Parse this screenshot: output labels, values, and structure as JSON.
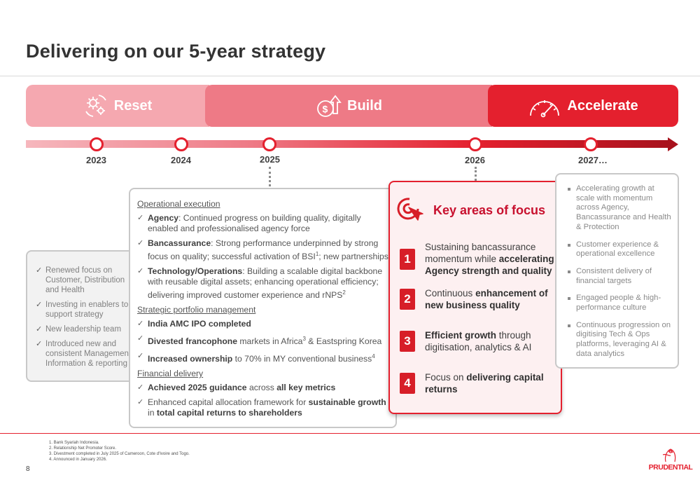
{
  "title": "Delivering on our 5-year strategy",
  "phases": {
    "reset": "Reset",
    "build": "Build",
    "accelerate": "Accelerate"
  },
  "timeline": {
    "years": [
      "2023",
      "2024",
      "2025",
      "2026",
      "2027…"
    ]
  },
  "reset_box": {
    "items": [
      "Renewed focus on Customer, Distribution and Health",
      "Investing in enablers to support strategy",
      "New leadership team",
      "Introduced new and consistent Management Information & reporting"
    ]
  },
  "build_box": {
    "operational_heading": "Operational execution",
    "agency_label": "Agency",
    "agency_text": ": Continued progress on building quality, digitally enabled and professionalised agency force",
    "banc_label": "Bancassurance",
    "banc_text": ": Strong performance underpinned by strong focus on quality; successful activation of BSI",
    "banc_sup": "1",
    "banc_text2": "; new partnerships",
    "tech_label": "Technology/Operations",
    "tech_text": ": Building a scalable digital backbone with reusable digital assets; enhancing operational efficiency; delivering improved customer experience and rNPS",
    "tech_sup": "2",
    "portfolio_heading": "Strategic portfolio management",
    "india_label": "India AMC IPO completed",
    "divested_label": "Divested francophone",
    "divested_text": " markets in Africa",
    "divested_sup": "3",
    "divested_text2": " & Eastspring Korea",
    "increased_label": "Increased ownership",
    "increased_text": " to 70% in MY conventional business",
    "increased_sup": "4",
    "financial_heading": "Financial delivery",
    "achieved_label": "Achieved 2025 guidance",
    "achieved_text": " across ",
    "achieved_label2": "all key metrics",
    "enhanced_text": "Enhanced capital allocation framework for ",
    "enhanced_label": "sustainable growth",
    "enhanced_text2": " in ",
    "enhanced_label2": "total capital returns to shareholders"
  },
  "focus_box": {
    "title": "Key areas of focus",
    "items": [
      {
        "num": "1",
        "pre": "Sustaining bancassurance momentum while ",
        "bold": "accelerating Agency strength and quality",
        "post": ""
      },
      {
        "num": "2",
        "pre": "Continuous ",
        "bold": "enhancement of new business quality",
        "post": ""
      },
      {
        "num": "3",
        "pre": "",
        "bold": "Efficient growth",
        "post": " through digitisation, analytics & AI"
      },
      {
        "num": "4",
        "pre": "Focus on ",
        "bold": "delivering capital returns",
        "post": ""
      }
    ]
  },
  "accel_box": {
    "items": [
      "Accelerating growth at scale with momentum across Agency, Bancassurance and Health & Protection",
      "Customer experience & operational excellence",
      "Consistent delivery of financial targets",
      "Engaged people & high-performance culture",
      "Continuous progression on digitising Tech & Ops platforms, leveraging AI & data analytics"
    ]
  },
  "footnotes": [
    "1.  Bank Syariah Indonesia.",
    "2.  Relationship Net Promoter Score.",
    "3.  Divestment completed in July 2025 of Cameroon, Cote d'Ivoire and Togo.",
    "4.  Announced in January 2026."
  ],
  "page_number": "8",
  "logo_text": "PRUDENTIAL",
  "colors": {
    "brand_red": "#e4202e",
    "reset_pink": "#f5a8b0",
    "build_pink": "#ee7a86"
  }
}
